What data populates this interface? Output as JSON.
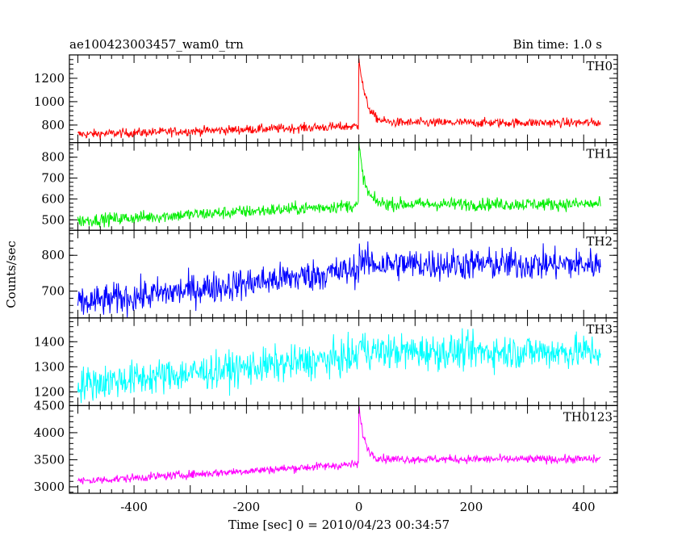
{
  "chart_data": {
    "type": "line",
    "title_left": "ae100423003457_wam0_trn",
    "title_right": "Bin time: 1.0 s",
    "xlabel": "Time [sec] 0 = 2010/04/23 00:34:57",
    "ylabel": "Counts/sec",
    "xlim": [
      -515,
      460
    ],
    "xticks": [
      -400,
      -200,
      0,
      200,
      400
    ],
    "x_range": [
      -500,
      430
    ],
    "grid": false,
    "panels": [
      {
        "name": "TH0",
        "color": "#ff0000",
        "ylim": [
          650,
          1400
        ],
        "yticks": [
          800,
          1000,
          1200
        ],
        "series_shape": {
          "start": 720,
          "end": 790,
          "noise": 28,
          "peak": 1400,
          "plateau": 820,
          "decay_tau": 12
        }
      },
      {
        "name": "TH1",
        "color": "#00ee00",
        "ylim": [
          450,
          870
        ],
        "yticks": [
          500,
          600,
          700,
          800
        ],
        "series_shape": {
          "start": 495,
          "end": 570,
          "noise": 22,
          "peak": 870,
          "plateau": 575,
          "decay_tau": 10
        }
      },
      {
        "name": "TH2",
        "color": "#0000ff",
        "ylim": [
          625,
          870
        ],
        "yticks": [
          700,
          800
        ],
        "series_shape": {
          "start": 665,
          "end": 760,
          "noise": 32,
          "peak": 800,
          "plateau": 775,
          "decay_tau": 8
        }
      },
      {
        "name": "TH3",
        "color": "#00ffff",
        "ylim": [
          1145,
          1495
        ],
        "yticks": [
          1200,
          1300,
          1400
        ],
        "series_shape": {
          "start": 1230,
          "end": 1340,
          "noise": 50,
          "peak": 1400,
          "plateau": 1360,
          "decay_tau": 8
        }
      },
      {
        "name": "TH0123",
        "color": "#ff00ff",
        "ylim": [
          2880,
          4500
        ],
        "yticks": [
          3000,
          3500,
          4000,
          4500
        ],
        "series_shape": {
          "start": 3100,
          "end": 3420,
          "noise": 55,
          "peak": 4500,
          "plateau": 3510,
          "decay_tau": 10
        }
      }
    ]
  }
}
